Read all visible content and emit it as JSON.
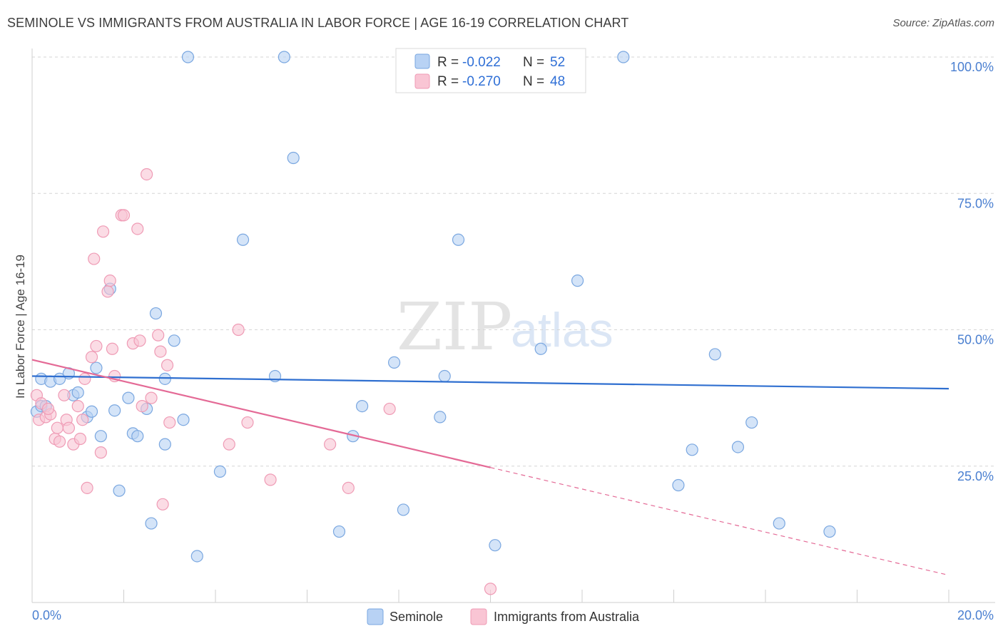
{
  "header": {
    "title": "SEMINOLE VS IMMIGRANTS FROM AUSTRALIA IN LABOR FORCE | AGE 16-19 CORRELATION CHART",
    "source": "Source: ZipAtlas.com"
  },
  "watermark": {
    "part1": "ZIP",
    "part2": "atlas"
  },
  "colors": {
    "seminole_fill": "#b8d2f4",
    "seminole_stroke": "#7aa7e0",
    "seminole_line": "#2f6fd0",
    "australia_fill": "#f9c5d4",
    "australia_stroke": "#ef9bb5",
    "australia_line": "#e46a96"
  },
  "legend": {
    "r_label": "R =",
    "n_label": "N =",
    "series1": {
      "r": "-0.022",
      "n": "52"
    },
    "series2": {
      "r": "-0.270",
      "n": "48"
    }
  },
  "chart_data": {
    "type": "scatter",
    "title": "SEMINOLE VS IMMIGRANTS FROM AUSTRALIA IN LABOR FORCE | AGE 16-19 CORRELATION CHART",
    "xlabel": "",
    "ylabel": "In Labor Force | Age 16-19",
    "xlim": [
      0,
      20
    ],
    "ylim": [
      0,
      100
    ],
    "x_tick_labels": [
      "0.0%",
      "20.0%"
    ],
    "y_tick_labels": [
      "100.0%",
      "75.0%",
      "50.0%",
      "25.0%"
    ],
    "y_ticks": [
      100,
      75,
      50,
      25
    ],
    "grid": true,
    "series": [
      {
        "name": "Seminole",
        "r": -0.022,
        "n": 52,
        "trend": {
          "x0": 0,
          "y0": 41.5,
          "x1": 20,
          "y1": 39.2,
          "dashed_from": null
        },
        "points": [
          [
            0.1,
            35.0
          ],
          [
            0.2,
            36.0
          ],
          [
            0.2,
            41.0
          ],
          [
            0.4,
            40.5
          ],
          [
            0.6,
            41.0
          ],
          [
            0.8,
            42.0
          ],
          [
            0.9,
            38.0
          ],
          [
            1.0,
            38.5
          ],
          [
            1.2,
            34.0
          ],
          [
            1.3,
            35.0
          ],
          [
            1.4,
            43.0
          ],
          [
            1.5,
            30.5
          ],
          [
            1.7,
            57.5
          ],
          [
            1.8,
            35.2
          ],
          [
            1.9,
            20.5
          ],
          [
            2.1,
            37.5
          ],
          [
            2.2,
            31.0
          ],
          [
            2.3,
            30.5
          ],
          [
            2.5,
            35.5
          ],
          [
            2.6,
            14.5
          ],
          [
            2.7,
            53.0
          ],
          [
            2.9,
            29.0
          ],
          [
            2.9,
            41.0
          ],
          [
            3.1,
            48.0
          ],
          [
            3.3,
            33.5
          ],
          [
            3.4,
            100.0
          ],
          [
            3.6,
            8.5
          ],
          [
            4.1,
            24.0
          ],
          [
            4.6,
            66.5
          ],
          [
            5.3,
            41.5
          ],
          [
            5.5,
            100.0
          ],
          [
            5.7,
            81.5
          ],
          [
            6.7,
            13.0
          ],
          [
            7.0,
            30.5
          ],
          [
            7.2,
            36.0
          ],
          [
            7.9,
            44.0
          ],
          [
            8.1,
            17.0
          ],
          [
            8.9,
            34.0
          ],
          [
            9.0,
            41.5
          ],
          [
            9.3,
            66.5
          ],
          [
            10.1,
            10.5
          ],
          [
            11.1,
            46.5
          ],
          [
            11.9,
            59.0
          ],
          [
            12.9,
            100.0
          ],
          [
            14.1,
            21.5
          ],
          [
            14.4,
            28.0
          ],
          [
            14.9,
            45.5
          ],
          [
            15.4,
            28.5
          ],
          [
            15.7,
            33.0
          ],
          [
            16.3,
            14.5
          ],
          [
            17.4,
            13.0
          ],
          [
            0.3,
            36.0
          ]
        ]
      },
      {
        "name": "Immigrants from Australia",
        "r": -0.27,
        "n": 48,
        "trend": {
          "x0": 0,
          "y0": 44.5,
          "x1": 20,
          "y1": 5.0,
          "dashed_from": 10.0
        },
        "points": [
          [
            0.1,
            38.0
          ],
          [
            0.15,
            33.5
          ],
          [
            0.2,
            36.5
          ],
          [
            0.3,
            34.0
          ],
          [
            0.4,
            34.5
          ],
          [
            0.5,
            30.0
          ],
          [
            0.55,
            32.0
          ],
          [
            0.6,
            29.5
          ],
          [
            0.7,
            38.0
          ],
          [
            0.75,
            33.5
          ],
          [
            0.8,
            32.0
          ],
          [
            0.9,
            29.0
          ],
          [
            1.0,
            36.0
          ],
          [
            1.05,
            30.0
          ],
          [
            1.1,
            33.5
          ],
          [
            1.2,
            21.0
          ],
          [
            1.3,
            45.0
          ],
          [
            1.35,
            63.0
          ],
          [
            1.4,
            47.0
          ],
          [
            1.5,
            27.5
          ],
          [
            1.55,
            68.0
          ],
          [
            1.65,
            57.0
          ],
          [
            1.7,
            59.0
          ],
          [
            1.75,
            46.5
          ],
          [
            1.8,
            41.5
          ],
          [
            1.95,
            71.0
          ],
          [
            2.0,
            71.0
          ],
          [
            2.2,
            47.5
          ],
          [
            2.3,
            68.5
          ],
          [
            2.35,
            48.0
          ],
          [
            2.4,
            36.0
          ],
          [
            2.5,
            78.5
          ],
          [
            2.6,
            37.5
          ],
          [
            2.75,
            49.0
          ],
          [
            2.8,
            46.0
          ],
          [
            2.85,
            18.0
          ],
          [
            2.95,
            43.5
          ],
          [
            3.0,
            33.0
          ],
          [
            4.3,
            29.0
          ],
          [
            4.5,
            50.0
          ],
          [
            4.7,
            33.0
          ],
          [
            5.2,
            22.5
          ],
          [
            6.5,
            29.0
          ],
          [
            6.9,
            21.0
          ],
          [
            7.8,
            35.5
          ],
          [
            10.0,
            2.5
          ],
          [
            0.35,
            35.5
          ],
          [
            1.15,
            41.0
          ]
        ]
      }
    ],
    "bottom_legend": [
      "Seminole",
      "Immigrants from Australia"
    ]
  }
}
